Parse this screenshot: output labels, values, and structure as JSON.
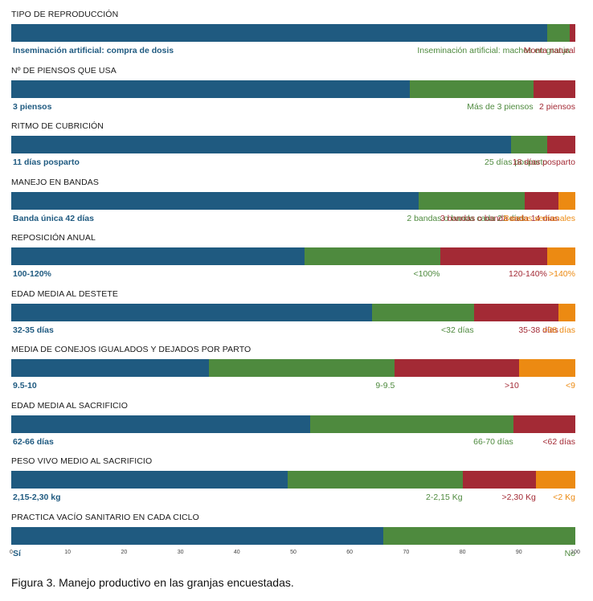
{
  "colors": {
    "blue": "#1f5a80",
    "green": "#4e8a3e",
    "red": "#a32a35",
    "orange": "#ec8a12"
  },
  "chart_data": {
    "type": "bar",
    "orientation": "horizontal-stacked-100",
    "xlim": [
      0,
      100
    ],
    "xticks": [
      "0",
      "10",
      "20",
      "30",
      "40",
      "50",
      "60",
      "70",
      "80",
      "90",
      "100"
    ],
    "rows": [
      {
        "title": "TIPO DE REPRODUCCIÓN",
        "segments": [
          {
            "label": "Inseminación artificial: compra de dosis",
            "value": 96,
            "color": "blue"
          },
          {
            "label": "Inseminación artificial: machos en granja",
            "value": 4,
            "color": "green"
          },
          {
            "label": "Monta natural",
            "value": 1,
            "color": "red"
          }
        ]
      },
      {
        "title": "Nº DE PIENSOS QUE USA",
        "segments": [
          {
            "label": "3 piensos",
            "value": 71,
            "color": "blue"
          },
          {
            "label": "Más de 3 piensos",
            "value": 22,
            "color": "green"
          },
          {
            "label": "2 piensos",
            "value": 7.5,
            "color": "red"
          }
        ]
      },
      {
        "title": "RITMO DE CUBRICIÓN",
        "segments": [
          {
            "label": "11 días posparto",
            "value": 89.5,
            "color": "blue"
          },
          {
            "label": "25 días posparto",
            "value": 6.5,
            "color": "green"
          },
          {
            "label": "18 días posparto",
            "value": 5,
            "color": "red"
          }
        ]
      },
      {
        "title": "MANEJO EN BANDAS",
        "segments": [
          {
            "label": "Banda única 42 días",
            "value": 73,
            "color": "blue"
          },
          {
            "label": "2 bandas o banda cada 21 días",
            "value": 19,
            "color": "green"
          },
          {
            "label": "3 bandas o banda cada 14 días",
            "value": 6,
            "color": "red"
          },
          {
            "label": "Bandas semanales",
            "value": 3,
            "color": "orange"
          }
        ]
      },
      {
        "title": "REPOSICIÓN ANUAL",
        "segments": [
          {
            "label": "100-120%",
            "value": 52,
            "color": "blue"
          },
          {
            "label": "<100%",
            "value": 24,
            "color": "green"
          },
          {
            "label": "120-140%",
            "value": 19,
            "color": "red"
          },
          {
            "label": ">140%",
            "value": 5,
            "color": "orange"
          }
        ]
      },
      {
        "title": "EDAD MEDIA AL DESTETE",
        "segments": [
          {
            "label": "32-35 días",
            "value": 64,
            "color": "blue"
          },
          {
            "label": "<32 días",
            "value": 18,
            "color": "green"
          },
          {
            "label": "35-38 días",
            "value": 15,
            "color": "red"
          },
          {
            "label": ">38 días",
            "value": 3,
            "color": "orange"
          }
        ]
      },
      {
        "title": "MEDIA DE CONEJOS IGUALADOS Y DEJADOS POR PARTO",
        "segments": [
          {
            "label": "9.5-10",
            "value": 35,
            "color": "blue"
          },
          {
            "label": "9-9.5",
            "value": 33,
            "color": "green"
          },
          {
            "label": ">10",
            "value": 22,
            "color": "red"
          },
          {
            "label": "<9",
            "value": 10,
            "color": "orange"
          }
        ]
      },
      {
        "title": "EDAD MEDIA AL SACRIFICIO",
        "segments": [
          {
            "label": "62-66 días",
            "value": 53,
            "color": "blue"
          },
          {
            "label": "66-70 días",
            "value": 36,
            "color": "green"
          },
          {
            "label": "<62 días",
            "value": 11,
            "color": "red"
          }
        ]
      },
      {
        "title": "PESO VIVO MEDIO AL SACRIFICIO",
        "segments": [
          {
            "label": "2,15-2,30 kg",
            "value": 49,
            "color": "blue"
          },
          {
            "label": "2-2,15 Kg",
            "value": 31,
            "color": "green"
          },
          {
            "label": ">2,30 Kg",
            "value": 13,
            "color": "red"
          },
          {
            "label": "<2 Kg",
            "value": 7,
            "color": "orange"
          }
        ]
      },
      {
        "title": "PRACTICA VACÍO SANITARIO EN CADA CICLO",
        "segments": [
          {
            "label": "Sí",
            "value": 66,
            "color": "blue"
          },
          {
            "label": "No",
            "value": 34,
            "color": "green"
          }
        ]
      }
    ]
  },
  "caption": "Figura 3. Manejo productivo en las granjas encuestadas."
}
